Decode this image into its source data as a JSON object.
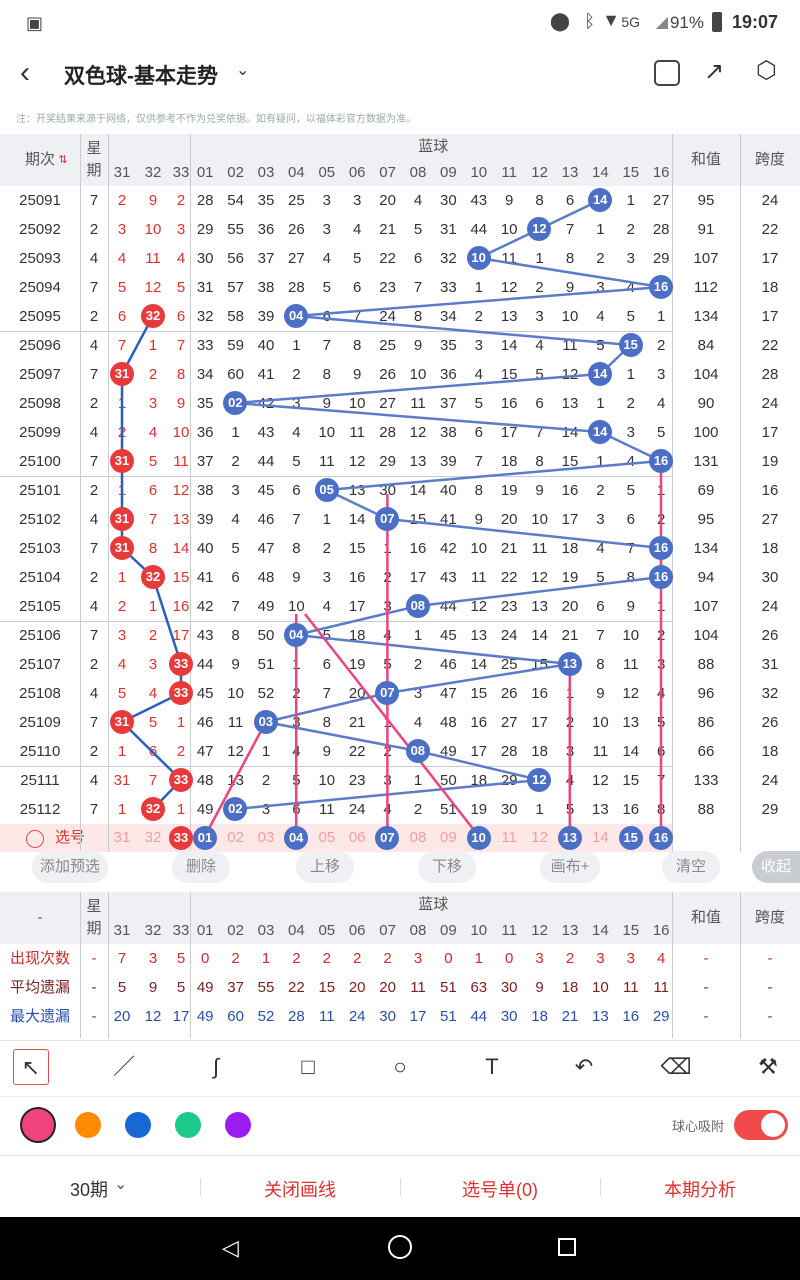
{
  "status": {
    "net": "5G",
    "battery": "91%",
    "time": "19:07"
  },
  "header": {
    "title": "双色球-基本走势",
    "notice": "注：开奖结果来源于网络，仅供参考不作为兑奖依据。如有疑问，以福体彩官方数据为准。"
  },
  "table": {
    "col_period": "期次",
    "col_week": "星期",
    "col_blue": "蓝球",
    "col_sum": "和值",
    "col_span": "跨度",
    "red_partial": [
      "31",
      "32",
      "33"
    ],
    "blue_nums": [
      "01",
      "02",
      "03",
      "04",
      "05",
      "06",
      "07",
      "08",
      "09",
      "10",
      "11",
      "12",
      "13",
      "14",
      "15",
      "16"
    ],
    "rows": [
      {
        "p": "25091",
        "w": "7",
        "r": [
          "2",
          "9",
          "2"
        ],
        "b": [
          "28",
          "54",
          "35",
          "25",
          "3",
          "3",
          "20",
          "4",
          "30",
          "43",
          "9",
          "8",
          "6",
          "14",
          "1",
          "27"
        ],
        "hit": 14,
        "s": "95",
        "k": "24"
      },
      {
        "p": "25092",
        "w": "2",
        "r": [
          "3",
          "10",
          "3"
        ],
        "b": [
          "29",
          "55",
          "36",
          "26",
          "3",
          "4",
          "21",
          "5",
          "31",
          "44",
          "10",
          "12",
          "7",
          "1",
          "2",
          "28"
        ],
        "hit": 12,
        "s": "91",
        "k": "22"
      },
      {
        "p": "25093",
        "w": "4",
        "r": [
          "4",
          "11",
          "4"
        ],
        "b": [
          "30",
          "56",
          "37",
          "27",
          "4",
          "5",
          "22",
          "6",
          "32",
          "10",
          "11",
          "1",
          "8",
          "2",
          "3",
          "29"
        ],
        "hit": 10,
        "s": "107",
        "k": "17"
      },
      {
        "p": "25094",
        "w": "7",
        "r": [
          "5",
          "12",
          "5"
        ],
        "b": [
          "31",
          "57",
          "38",
          "28",
          "5",
          "6",
          "23",
          "7",
          "33",
          "1",
          "12",
          "2",
          "9",
          "3",
          "4",
          "16"
        ],
        "hit": 16,
        "s": "112",
        "k": "18"
      },
      {
        "p": "25095",
        "w": "2",
        "r": [
          "6",
          "32",
          "6"
        ],
        "b": [
          "32",
          "58",
          "39",
          "04",
          "6",
          "7",
          "24",
          "8",
          "34",
          "2",
          "13",
          "3",
          "10",
          "4",
          "5",
          "1"
        ],
        "hit": 4,
        "rh": 2,
        "s": "134",
        "k": "17"
      },
      {
        "p": "25096",
        "w": "4",
        "r": [
          "7",
          "1",
          "7"
        ],
        "b": [
          "33",
          "59",
          "40",
          "1",
          "7",
          "8",
          "25",
          "9",
          "35",
          "3",
          "14",
          "4",
          "11",
          "5",
          "15",
          "2"
        ],
        "hit": 15,
        "s": "84",
        "k": "22"
      },
      {
        "p": "25097",
        "w": "7",
        "r": [
          "31",
          "2",
          "8"
        ],
        "b": [
          "34",
          "60",
          "41",
          "2",
          "8",
          "9",
          "26",
          "10",
          "36",
          "4",
          "15",
          "5",
          "12",
          "14",
          "1",
          "3"
        ],
        "hit": 14,
        "rh": 1,
        "s": "104",
        "k": "28"
      },
      {
        "p": "25098",
        "w": "2",
        "r": [
          "1",
          "3",
          "9"
        ],
        "b": [
          "35",
          "02",
          "42",
          "3",
          "9",
          "10",
          "27",
          "11",
          "37",
          "5",
          "16",
          "6",
          "13",
          "1",
          "2",
          "4"
        ],
        "hit": 2,
        "s": "90",
        "k": "24"
      },
      {
        "p": "25099",
        "w": "4",
        "r": [
          "2",
          "4",
          "10"
        ],
        "b": [
          "36",
          "1",
          "43",
          "4",
          "10",
          "11",
          "28",
          "12",
          "38",
          "6",
          "17",
          "7",
          "14",
          "14",
          "3",
          "5"
        ],
        "hit": 14,
        "s": "100",
        "k": "17"
      },
      {
        "p": "25100",
        "w": "7",
        "r": [
          "31",
          "5",
          "11"
        ],
        "b": [
          "37",
          "2",
          "44",
          "5",
          "11",
          "12",
          "29",
          "13",
          "39",
          "7",
          "18",
          "8",
          "15",
          "1",
          "4",
          "16"
        ],
        "hit": 16,
        "rh": 1,
        "s": "131",
        "k": "19"
      },
      {
        "p": "25101",
        "w": "2",
        "r": [
          "1",
          "6",
          "12"
        ],
        "b": [
          "38",
          "3",
          "45",
          "6",
          "05",
          "13",
          "30",
          "14",
          "40",
          "8",
          "19",
          "9",
          "16",
          "2",
          "5",
          "1"
        ],
        "hit": 5,
        "s": "69",
        "k": "16"
      },
      {
        "p": "25102",
        "w": "4",
        "r": [
          "31",
          "7",
          "13"
        ],
        "b": [
          "39",
          "4",
          "46",
          "7",
          "1",
          "14",
          "07",
          "15",
          "41",
          "9",
          "20",
          "10",
          "17",
          "3",
          "6",
          "2"
        ],
        "hit": 7,
        "rh": 1,
        "s": "95",
        "k": "27"
      },
      {
        "p": "25103",
        "w": "7",
        "r": [
          "31",
          "8",
          "14"
        ],
        "b": [
          "40",
          "5",
          "47",
          "8",
          "2",
          "15",
          "1",
          "16",
          "42",
          "10",
          "21",
          "11",
          "18",
          "4",
          "7",
          "16"
        ],
        "hit": 16,
        "rh": 1,
        "s": "134",
        "k": "18"
      },
      {
        "p": "25104",
        "w": "2",
        "r": [
          "1",
          "32",
          "15"
        ],
        "b": [
          "41",
          "6",
          "48",
          "9",
          "3",
          "16",
          "2",
          "17",
          "43",
          "11",
          "22",
          "12",
          "19",
          "5",
          "8",
          "16"
        ],
        "hit": 16,
        "rh": 2,
        "s": "94",
        "k": "30"
      },
      {
        "p": "25105",
        "w": "4",
        "r": [
          "2",
          "1",
          "16"
        ],
        "b": [
          "42",
          "7",
          "49",
          "10",
          "4",
          "17",
          "3",
          "08",
          "44",
          "12",
          "23",
          "13",
          "20",
          "6",
          "9",
          "1"
        ],
        "hit": 8,
        "s": "107",
        "k": "24"
      },
      {
        "p": "25106",
        "w": "7",
        "r": [
          "3",
          "2",
          "17"
        ],
        "b": [
          "43",
          "8",
          "50",
          "04",
          "5",
          "18",
          "4",
          "1",
          "45",
          "13",
          "24",
          "14",
          "21",
          "7",
          "10",
          "2"
        ],
        "hit": 4,
        "s": "104",
        "k": "26"
      },
      {
        "p": "25107",
        "w": "2",
        "r": [
          "4",
          "3",
          "33"
        ],
        "b": [
          "44",
          "9",
          "51",
          "1",
          "6",
          "19",
          "5",
          "2",
          "46",
          "14",
          "25",
          "15",
          "13",
          "8",
          "11",
          "3"
        ],
        "hit": 13,
        "rh": 3,
        "s": "88",
        "k": "31"
      },
      {
        "p": "25108",
        "w": "4",
        "r": [
          "5",
          "4",
          "33"
        ],
        "b": [
          "45",
          "10",
          "52",
          "2",
          "7",
          "20",
          "07",
          "3",
          "47",
          "15",
          "26",
          "16",
          "1",
          "9",
          "12",
          "4"
        ],
        "hit": 7,
        "rh": 3,
        "s": "96",
        "k": "32"
      },
      {
        "p": "25109",
        "w": "7",
        "r": [
          "31",
          "5",
          "1"
        ],
        "b": [
          "46",
          "11",
          "03",
          "3",
          "8",
          "21",
          "1",
          "4",
          "48",
          "16",
          "27",
          "17",
          "2",
          "10",
          "13",
          "5"
        ],
        "hit": 3,
        "rh": 1,
        "s": "86",
        "k": "26"
      },
      {
        "p": "25110",
        "w": "2",
        "r": [
          "1",
          "6",
          "2"
        ],
        "b": [
          "47",
          "12",
          "1",
          "4",
          "9",
          "22",
          "2",
          "08",
          "49",
          "17",
          "28",
          "18",
          "3",
          "11",
          "14",
          "6"
        ],
        "hit": 8,
        "s": "66",
        "k": "18"
      },
      {
        "p": "25111",
        "w": "4",
        "r": [
          "31",
          "7",
          "33"
        ],
        "b": [
          "48",
          "13",
          "2",
          "5",
          "10",
          "23",
          "3",
          "1",
          "50",
          "18",
          "29",
          "12",
          "4",
          "12",
          "15",
          "7"
        ],
        "hit": 12,
        "rh": 3,
        "s": "133",
        "k": "24"
      },
      {
        "p": "25112",
        "w": "7",
        "r": [
          "1",
          "32",
          "1"
        ],
        "b": [
          "49",
          "02",
          "3",
          "6",
          "11",
          "24",
          "4",
          "2",
          "51",
          "19",
          "30",
          "1",
          "5",
          "13",
          "16",
          "8"
        ],
        "hit": 2,
        "rh": 2,
        "s": "88",
        "k": "29"
      }
    ],
    "select_label": "选号",
    "select_row_red": [
      "31",
      "32",
      "33"
    ],
    "select_row": [
      "01",
      "02",
      "03",
      "04",
      "05",
      "06",
      "07",
      "08",
      "09",
      "10",
      "11",
      "12",
      "13",
      "14",
      "15",
      "16"
    ]
  },
  "actions": {
    "add": "添加预选",
    "del": "删除",
    "up": "上移",
    "down": "下移",
    "canvas": "画布+",
    "clear": "清空",
    "fold": "收起"
  },
  "stats": {
    "dash": "-",
    "week": "星期",
    "blue": "蓝球",
    "sum": "和值",
    "span": "跨度",
    "red_partial": [
      "31",
      "32",
      "33"
    ],
    "blue_nums": [
      "01",
      "02",
      "03",
      "04",
      "05",
      "06",
      "07",
      "08",
      "09",
      "10",
      "11",
      "12",
      "13",
      "14",
      "15",
      "16"
    ],
    "rows": [
      {
        "label": "出现次数",
        "r": [
          "7",
          "3",
          "5"
        ],
        "b": [
          "0",
          "2",
          "1",
          "2",
          "2",
          "2",
          "2",
          "3",
          "0",
          "1",
          "0",
          "3",
          "2",
          "3",
          "3",
          "4"
        ],
        "cls": "red"
      },
      {
        "label": "平均遗漏",
        "r": [
          "5",
          "9",
          "5"
        ],
        "b": [
          "49",
          "37",
          "55",
          "22",
          "15",
          "20",
          "20",
          "11",
          "51",
          "63",
          "30",
          "9",
          "18",
          "10",
          "11",
          "11"
        ],
        "cls": "dark"
      },
      {
        "label": "最大遗漏",
        "r": [
          "20",
          "12",
          "17"
        ],
        "b": [
          "49",
          "60",
          "52",
          "28",
          "11",
          "24",
          "30",
          "17",
          "51",
          "44",
          "30",
          "18",
          "21",
          "13",
          "16",
          "29"
        ],
        "cls": "blue"
      }
    ]
  },
  "tools": {
    "snap_label": "球心吸附",
    "snap_on": true
  },
  "colors": [
    "#f0437c",
    "#ff8a00",
    "#1967d2",
    "#1cc88a",
    "#9b1cf0"
  ],
  "bottom": {
    "period": "30期",
    "close_draw": "关闭画线",
    "pick_list": "选号单(0)",
    "analysis": "本期分析"
  }
}
